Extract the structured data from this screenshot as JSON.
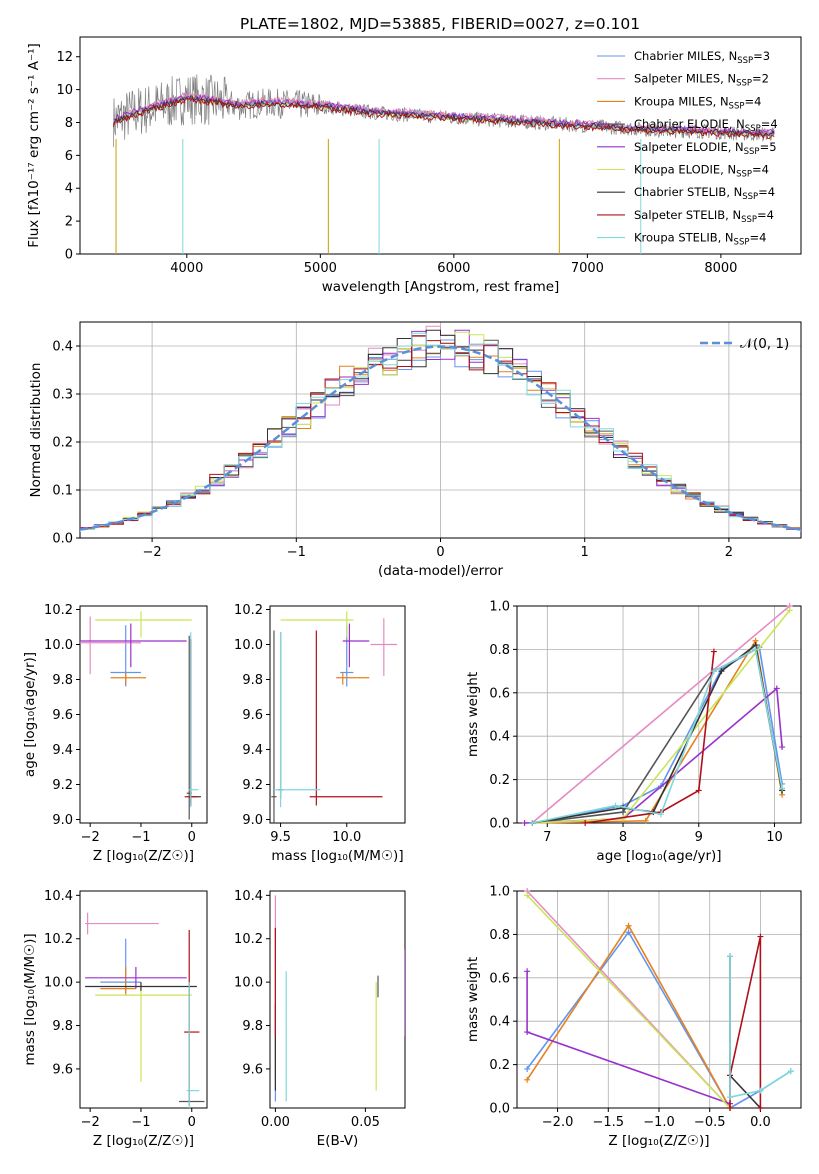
{
  "title": "PLATE=1802, MJD=53885, FIBERID=0027, z=0.101",
  "colors": [
    "#6495ed",
    "#e78ac3",
    "#e6811f",
    "#555555",
    "#9932cc",
    "#c8e65a",
    "#333333",
    "#b0101a",
    "#7fd8dc"
  ],
  "chart_data": [
    {
      "type": "line",
      "title": "PLATE=1802, MJD=53885, FIBERID=0027, z=0.101",
      "xlabel": "wavelength [Angstrom, rest frame]",
      "ylabel": "Flux [fλ10⁻¹⁷ erg cm⁻² s⁻¹ A⁻¹]",
      "xlim": [
        3200,
        8600
      ],
      "ylim": [
        0,
        13.2
      ],
      "xticks": [
        "4000",
        "5000",
        "6000",
        "7000",
        "8000"
      ],
      "yticks": [
        "0",
        "2",
        "4",
        "6",
        "8",
        "10",
        "12"
      ],
      "legend_position": "upper-right",
      "x": [
        3450,
        3600,
        3800,
        4000,
        4200,
        4400,
        4600,
        4800,
        5000,
        5200,
        5400,
        5600,
        5800,
        6000,
        6200,
        6400,
        6600,
        6800,
        7000,
        7200,
        7400,
        7600,
        7800,
        8000,
        8200,
        8400
      ],
      "series": [
        {
          "name": "Chabrier MILES, N",
          "sub": "SSP",
          "suffix": "=3",
          "values": [
            8.0,
            8.6,
            9.1,
            9.6,
            9.4,
            9.1,
            9.3,
            9.2,
            9.1,
            8.9,
            8.7,
            8.6,
            8.5,
            8.4,
            8.3,
            8.2,
            8.1,
            7.9,
            7.9,
            7.7,
            7.6,
            7.6,
            7.5,
            7.4,
            7.4,
            7.3
          ]
        },
        {
          "name": "Salpeter MILES, N",
          "sub": "SSP",
          "suffix": "=2",
          "values": [
            8.1,
            8.7,
            9.2,
            9.7,
            9.5,
            9.2,
            9.4,
            9.3,
            9.2,
            9.0,
            8.8,
            8.7,
            8.6,
            8.5,
            8.4,
            8.3,
            8.2,
            8.0,
            8.0,
            7.8,
            7.7,
            7.6,
            7.6,
            7.5,
            7.4,
            7.4
          ]
        },
        {
          "name": "Kroupa MILES, N",
          "sub": "SSP",
          "suffix": "=4",
          "values": [
            8.0,
            8.6,
            9.1,
            9.6,
            9.4,
            9.1,
            9.3,
            9.2,
            9.1,
            8.9,
            8.7,
            8.6,
            8.5,
            8.4,
            8.3,
            8.2,
            8.1,
            7.9,
            7.9,
            7.7,
            7.6,
            7.6,
            7.5,
            7.4,
            7.4,
            7.3
          ]
        },
        {
          "name": "Chabrier ELODIE, N",
          "sub": "SSP",
          "suffix": "=4",
          "values": [
            8.1,
            8.6,
            9.0,
            9.5,
            9.3,
            9.0,
            9.2,
            9.1,
            9.0,
            8.8,
            8.6,
            8.5,
            8.4,
            8.3,
            8.2,
            8.1,
            8.0,
            7.9,
            7.8,
            7.7,
            7.6,
            7.5,
            7.5,
            7.4,
            7.3,
            7.3
          ]
        },
        {
          "name": "Salpeter ELODIE, N",
          "sub": "SSP",
          "suffix": "=5",
          "values": [
            8.2,
            8.7,
            9.1,
            9.6,
            9.4,
            9.1,
            9.3,
            9.2,
            9.1,
            8.9,
            8.7,
            8.6,
            8.5,
            8.4,
            8.3,
            8.2,
            8.1,
            8.0,
            7.9,
            7.8,
            7.7,
            7.6,
            7.6,
            7.5,
            7.4,
            7.4
          ]
        },
        {
          "name": "Kroupa ELODIE, N",
          "sub": "SSP",
          "suffix": "=4",
          "values": [
            8.1,
            8.6,
            9.0,
            9.5,
            9.3,
            9.0,
            9.2,
            9.1,
            9.0,
            8.8,
            8.6,
            8.5,
            8.4,
            8.3,
            8.2,
            8.1,
            8.0,
            7.9,
            7.8,
            7.7,
            7.6,
            7.5,
            7.5,
            7.4,
            7.3,
            7.3
          ]
        },
        {
          "name": "Chabrier STELIB, N",
          "sub": "SSP",
          "suffix": "=4",
          "values": [
            8.0,
            8.5,
            9.0,
            9.5,
            9.3,
            9.0,
            9.2,
            9.1,
            9.0,
            8.8,
            8.6,
            8.5,
            8.4,
            8.3,
            8.2,
            8.1,
            8.0,
            7.9,
            7.8,
            7.7,
            7.6,
            7.5,
            7.5,
            7.4,
            7.3,
            7.3
          ]
        },
        {
          "name": "Salpeter STELIB, N",
          "sub": "SSP",
          "suffix": "=4",
          "values": [
            7.9,
            8.4,
            8.9,
            9.4,
            9.2,
            8.9,
            9.1,
            9.0,
            8.9,
            8.7,
            8.5,
            8.4,
            8.3,
            8.2,
            8.1,
            8.0,
            7.9,
            7.8,
            7.7,
            7.6,
            7.5,
            7.4,
            7.4,
            7.3,
            7.2,
            7.2
          ]
        },
        {
          "name": "Kroupa STELIB, N",
          "sub": "SSP",
          "suffix": "=4",
          "values": [
            8.0,
            8.5,
            9.0,
            9.5,
            9.3,
            9.0,
            9.2,
            9.1,
            9.0,
            8.8,
            8.6,
            8.5,
            8.4,
            8.3,
            8.2,
            8.1,
            8.0,
            7.9,
            7.8,
            7.7,
            7.6,
            7.5,
            7.5,
            7.4,
            7.3,
            7.3
          ]
        }
      ]
    },
    {
      "type": "line",
      "xlabel": "(data-model)/error",
      "ylabel": "Normed distribution",
      "xlim": [
        -2.5,
        2.5
      ],
      "ylim": [
        0,
        0.45
      ],
      "grid": true,
      "xticks": [
        "−2",
        "−1",
        "0",
        "1",
        "2"
      ],
      "yticks": [
        "0.0",
        "0.1",
        "0.2",
        "0.3",
        "0.4"
      ],
      "legend": "𝒩(0, 1)",
      "legend_position": "upper-right",
      "reference_curve": "standard normal density"
    },
    {
      "type": "scatter",
      "xlabel": "Z [log₁₀(Z/Z☉)]",
      "ylabel": "age  [log₁₀(age/yr)]",
      "xlim": [
        -2.2,
        0.3
      ],
      "ylim": [
        8.98,
        10.22
      ],
      "xticks": [
        "−2",
        "−1",
        "0"
      ],
      "yticks": [
        "9.0",
        "9.2",
        "9.4",
        "9.6",
        "9.8",
        "10.0",
        "10.2"
      ],
      "points": [
        {
          "x": -1.3,
          "y": 9.84,
          "xerr": [
            0.3,
            0.3
          ],
          "yerr": [
            0.08,
            0.27
          ]
        },
        {
          "x": -2.0,
          "y": 10.01,
          "xerr": [
            0.2,
            1.0
          ],
          "yerr": [
            0.18,
            0.15
          ]
        },
        {
          "x": -1.3,
          "y": 9.81,
          "xerr": [
            0.3,
            0.4
          ],
          "yerr": [
            0.04,
            0.03
          ]
        },
        {
          "x": -0.05,
          "y": 9.15,
          "xerr": [
            0.05,
            0.05
          ],
          "yerr": [
            0.15,
            0.9
          ]
        },
        {
          "x": -1.2,
          "y": 10.02,
          "xerr": [
            1.0,
            1.1
          ],
          "yerr": [
            0.15,
            0.1
          ]
        },
        {
          "x": -1.0,
          "y": 10.14,
          "xerr": [
            0.9,
            1.0
          ],
          "yerr": [
            0.1,
            0.05
          ]
        },
        {
          "x": -0.02,
          "y": 9.13,
          "xerr": [
            0.02,
            0.2
          ],
          "yerr": [
            0.05,
            0.9
          ]
        },
        {
          "x": -0.02,
          "y": 9.13,
          "xerr": [
            0.12,
            0.12
          ],
          "yerr": [
            0.05,
            0.9
          ]
        },
        {
          "x": -0.02,
          "y": 9.17,
          "xerr": [
            0.05,
            0.15
          ],
          "yerr": [
            0.1,
            0.9
          ]
        }
      ]
    },
    {
      "type": "scatter",
      "xlabel": "mass [log₁₀(M/M☉)]",
      "ylabel": "",
      "xlim": [
        9.42,
        10.44
      ],
      "ylim": [
        8.98,
        10.22
      ],
      "xticks": [
        "9.5",
        "10.0"
      ],
      "yticks": [
        "9.0",
        "9.2",
        "9.4",
        "9.6",
        "9.8",
        "10.0",
        "10.2"
      ],
      "points": [
        {
          "x": 10.0,
          "y": 9.84,
          "xerr": [
            0.05,
            0.05
          ],
          "yerr": [
            0.08,
            0.27
          ]
        },
        {
          "x": 10.28,
          "y": 10.0,
          "xerr": [
            0.1,
            0.1
          ],
          "yerr": [
            0.18,
            0.15
          ]
        },
        {
          "x": 9.97,
          "y": 9.81,
          "xerr": [
            0.05,
            0.2
          ],
          "yerr": [
            0.04,
            0.03
          ]
        },
        {
          "x": 9.45,
          "y": 9.13,
          "xerr": [
            0.02,
            0.02
          ],
          "yerr": [
            0.15,
            0.95
          ]
        },
        {
          "x": 10.02,
          "y": 10.02,
          "xerr": [
            0.05,
            0.15
          ],
          "yerr": [
            0.15,
            0.1
          ]
        },
        {
          "x": 10.0,
          "y": 10.14,
          "xerr": [
            0.5,
            0.05
          ],
          "yerr": [
            0.1,
            0.05
          ]
        },
        {
          "x": 9.5,
          "y": 9.17,
          "xerr": [
            0.02,
            0.02
          ],
          "yerr": [
            0.05,
            0.9
          ]
        },
        {
          "x": 9.77,
          "y": 9.13,
          "xerr": [
            0.05,
            0.5
          ],
          "yerr": [
            0.05,
            0.95
          ]
        },
        {
          "x": 9.5,
          "y": 9.17,
          "xerr": [
            0.05,
            0.3
          ],
          "yerr": [
            0.1,
            0.9
          ]
        }
      ]
    },
    {
      "type": "line",
      "xlabel": "age  [log₁₀(age/yr)]",
      "ylabel": "mass weight",
      "xlim": [
        6.6,
        10.35
      ],
      "ylim": [
        0,
        1
      ],
      "grid": true,
      "xticks": [
        "7",
        "8",
        "9",
        "10"
      ],
      "yticks": [
        "0.0",
        "0.2",
        "0.4",
        "0.6",
        "0.8",
        "1.0"
      ],
      "series": [
        {
          "x": [
            6.8,
            8.0,
            8.5,
            9.3,
            9.8,
            10.1
          ],
          "y": [
            0,
            0.08,
            0.17,
            0.71,
            0.81,
            0.18
          ]
        },
        {
          "x": [
            6.8,
            10.2
          ],
          "y": [
            0,
            1.0
          ]
        },
        {
          "x": [
            6.8,
            8.3,
            9.75,
            10.1
          ],
          "y": [
            0,
            0.01,
            0.84,
            0.13
          ]
        },
        {
          "x": [
            6.8,
            8.0,
            9.2,
            9.75,
            10.1
          ],
          "y": [
            0,
            0.05,
            0.7,
            0.8,
            0.15
          ]
        },
        {
          "x": [
            6.7,
            8.0,
            10.03,
            10.1
          ],
          "y": [
            0,
            0.02,
            0.62,
            0.35
          ]
        },
        {
          "x": [
            6.8,
            8.0,
            10.2
          ],
          "y": [
            0,
            0.02,
            0.98
          ]
        },
        {
          "x": [
            6.8,
            8.0,
            8.4,
            9.3,
            9.75,
            10.1
          ],
          "y": [
            0,
            0.07,
            0.05,
            0.7,
            0.82,
            0.15
          ]
        },
        {
          "x": [
            7.5,
            8.5,
            9.0,
            9.2
          ],
          "y": [
            0,
            0.05,
            0.15,
            0.79
          ]
        },
        {
          "x": [
            6.8,
            7.9,
            8.5,
            9.2,
            9.75,
            10.1
          ],
          "y": [
            0,
            0.08,
            0.04,
            0.7,
            0.8,
            0.16
          ]
        }
      ]
    },
    {
      "type": "scatter",
      "xlabel": "Z [log₁₀(Z/Z☉)]",
      "ylabel": "mass [log₁₀(M/M☉)]",
      "xlim": [
        -2.2,
        0.3
      ],
      "ylim": [
        9.42,
        10.42
      ],
      "xticks": [
        "−2",
        "−1",
        "0"
      ],
      "yticks": [
        "9.6",
        "9.8",
        "10.0",
        "10.2",
        "10.4"
      ],
      "points": [
        {
          "x": -1.3,
          "y": 10.0,
          "xerr": [
            0.5,
            0.3
          ],
          "yerr": [
            0.05,
            0.2
          ]
        },
        {
          "x": -2.05,
          "y": 10.27,
          "xerr": [
            0.05,
            1.4
          ],
          "yerr": [
            0.05,
            0.05
          ]
        },
        {
          "x": -1.3,
          "y": 9.97,
          "xerr": [
            0.5,
            0.2
          ],
          "yerr": [
            0.03,
            0.1
          ]
        },
        {
          "x": -0.05,
          "y": 9.45,
          "xerr": [
            0.2,
            0.3
          ],
          "yerr": [
            0.02,
            0.02
          ]
        },
        {
          "x": -1.1,
          "y": 10.02,
          "xerr": [
            1.0,
            1.0
          ],
          "yerr": [
            0.05,
            0.05
          ]
        },
        {
          "x": -1.0,
          "y": 9.94,
          "xerr": [
            0.9,
            1.0
          ],
          "yerr": [
            0.4,
            0.05
          ]
        },
        {
          "x": -1.0,
          "y": 9.98,
          "xerr": [
            1.1,
            1.1
          ],
          "yerr": [
            0.02,
            0.02
          ]
        },
        {
          "x": -0.05,
          "y": 9.77,
          "xerr": [
            0.1,
            0.2
          ],
          "yerr": [
            0.3,
            0.47
          ]
        },
        {
          "x": -0.05,
          "y": 9.5,
          "xerr": [
            0.05,
            0.2
          ],
          "yerr": [
            0.3,
            0.5
          ]
        }
      ]
    },
    {
      "type": "scatter",
      "xlabel": "E(B-V)",
      "ylabel": "",
      "xlim": [
        -0.003,
        0.072
      ],
      "ylim": [
        9.42,
        10.42
      ],
      "xticks": [
        "0.00",
        "0.05"
      ],
      "yticks": [
        "9.6",
        "9.8",
        "10.0",
        "10.2",
        "10.4"
      ],
      "points": [
        {
          "x": 0.0,
          "y": 9.85,
          "yerr": [
            0.4,
            0.4
          ]
        },
        {
          "x": 0.0,
          "y": 10.3,
          "yerr": [
            0.1,
            0.1
          ]
        },
        {
          "x": 0.0,
          "y": 9.9,
          "yerr": [
            0.35,
            0.35
          ]
        },
        {
          "x": 0.057,
          "y": 9.98,
          "yerr": [
            0.05,
            0.05
          ]
        },
        {
          "x": 0.072,
          "y": 9.95,
          "yerr": [
            0.2,
            0.2
          ]
        },
        {
          "x": 0.056,
          "y": 9.75,
          "yerr": [
            0.25,
            0.25
          ]
        },
        {
          "x": 0.0,
          "y": 9.7,
          "yerr": [
            0.2,
            0.2
          ]
        },
        {
          "x": 0.0,
          "y": 10.0,
          "yerr": [
            0.25,
            0.25
          ]
        },
        {
          "x": 0.006,
          "y": 9.75,
          "yerr": [
            0.3,
            0.3
          ]
        }
      ]
    },
    {
      "type": "line",
      "xlabel": "Z [log₁₀(Z/Z☉)]",
      "ylabel": "mass weight",
      "xlim": [
        -2.4,
        0.4
      ],
      "ylim": [
        0,
        1
      ],
      "grid": true,
      "xticks": [
        "−2.0",
        "−1.5",
        "−1.0",
        "−0.5",
        "0.0"
      ],
      "yticks": [
        "0.0",
        "0.2",
        "0.4",
        "0.6",
        "0.8",
        "1.0"
      ],
      "series": [
        {
          "x": [
            -2.3,
            -1.3,
            -0.3,
            0.0,
            0.3
          ],
          "y": [
            0.18,
            0.81,
            0.0,
            0.08,
            0.17
          ]
        },
        {
          "x": [
            -2.3,
            -0.3
          ],
          "y": [
            1.0,
            0.0
          ]
        },
        {
          "x": [
            -2.3,
            -1.3,
            -0.3
          ],
          "y": [
            0.13,
            0.84,
            0.0
          ]
        },
        {
          "x": [
            -0.3,
            -0.3
          ],
          "y": [
            0.7,
            0.15
          ]
        },
        {
          "x": [
            -2.3,
            -2.3,
            -0.3
          ],
          "y": [
            0.63,
            0.35,
            0.02
          ]
        },
        {
          "x": [
            -2.3,
            -0.3
          ],
          "y": [
            0.98,
            0.0
          ]
        },
        {
          "x": [
            -0.3,
            0.0
          ],
          "y": [
            0.15,
            0.0
          ]
        },
        {
          "x": [
            -0.3,
            -0.3,
            0.0,
            0.0
          ],
          "y": [
            0.0,
            0.15,
            0.79,
            0.0
          ]
        },
        {
          "x": [
            -0.3,
            -0.3,
            0.0,
            0.3
          ],
          "y": [
            0.7,
            0.05,
            0.08,
            0.17
          ]
        }
      ]
    }
  ]
}
